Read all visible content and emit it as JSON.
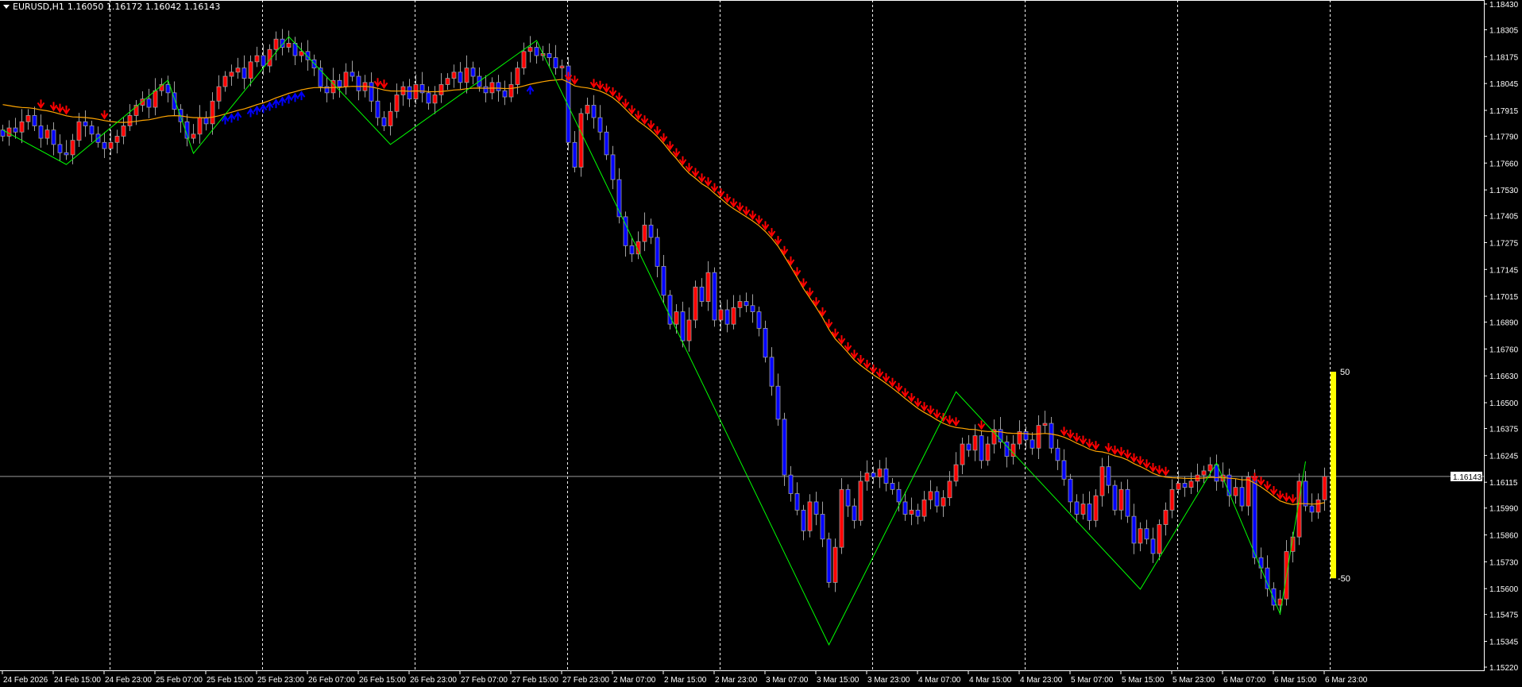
{
  "header": {
    "symbol": "EURUSD,H1",
    "ohlc": "1.16050 1.16172 1.16042 1.16143"
  },
  "colors": {
    "background": "#000000",
    "bull_candle": "#ff0000",
    "bear_candle": "#0000ff",
    "wick": "#a0a0a0",
    "moving_average": "#ffa500",
    "down_arrow": "#ff0000",
    "up_arrow": "#0000ff",
    "zigzag": "#00ff00",
    "indicator_bar": "#ffff00",
    "grid": "#ffffff"
  },
  "chart_data": {
    "type": "candlestick",
    "symbol": "EURUSD",
    "timeframe": "H1",
    "ylim": [
      1.1522,
      1.1843
    ],
    "price_ticks": [
      "1.18430",
      "1.18305",
      "1.18175",
      "1.18045",
      "1.17915",
      "1.17790",
      "1.17660",
      "1.17530",
      "1.17405",
      "1.17275",
      "1.17145",
      "1.17015",
      "1.16890",
      "1.16760",
      "1.16630",
      "1.16500",
      "1.16375",
      "1.16245",
      "1.16115",
      "1.15990",
      "1.15860",
      "1.15730",
      "1.15600",
      "1.15475",
      "1.15345",
      "1.15220"
    ],
    "time_ticks": [
      "24 Feb 2026",
      "24 Feb 15:00",
      "24 Feb 23:00",
      "25 Feb 07:00",
      "25 Feb 15:00",
      "25 Feb 23:00",
      "26 Feb 07:00",
      "26 Feb 15:00",
      "26 Feb 23:00",
      "27 Feb 07:00",
      "27 Feb 15:00",
      "27 Feb 23:00",
      "2 Mar 07:00",
      "2 Mar 15:00",
      "2 Mar 23:00",
      "3 Mar 07:00",
      "3 Mar 15:00",
      "3 Mar 23:00",
      "4 Mar 07:00",
      "4 Mar 15:00",
      "4 Mar 23:00",
      "5 Mar 07:00",
      "5 Mar 15:00",
      "5 Mar 23:00",
      "6 Mar 07:00",
      "6 Mar 15:00",
      "6 Mar 23:00"
    ],
    "day_separators_bar_index": [
      17,
      41,
      65,
      89,
      113,
      137,
      161,
      185,
      209
    ],
    "current_price": "1.16143",
    "closes": [
      1.1779,
      1.1783,
      1.1781,
      1.1786,
      1.1789,
      1.1784,
      1.1778,
      1.1782,
      1.1775,
      1.1771,
      1.177,
      1.1777,
      1.1786,
      1.1784,
      1.178,
      1.1776,
      1.1773,
      1.1776,
      1.1779,
      1.1784,
      1.1789,
      1.1794,
      1.1797,
      1.1793,
      1.1801,
      1.1804,
      1.18,
      1.1792,
      1.1786,
      1.1778,
      1.178,
      1.1788,
      1.1785,
      1.1796,
      1.1803,
      1.1808,
      1.181,
      1.1812,
      1.1807,
      1.1815,
      1.1818,
      1.1813,
      1.1821,
      1.1826,
      1.1822,
      1.1824,
      1.1818,
      1.182,
      1.1816,
      1.1812,
      1.1803,
      1.18,
      1.1806,
      1.1803,
      1.181,
      1.1808,
      1.1801,
      1.1805,
      1.1796,
      1.1788,
      1.1784,
      1.1791,
      1.1799,
      1.1803,
      1.1797,
      1.1804,
      1.18,
      1.1795,
      1.1799,
      1.1804,
      1.1807,
      1.181,
      1.1805,
      1.1812,
      1.1808,
      1.1803,
      1.18,
      1.1805,
      1.1801,
      1.1798,
      1.1804,
      1.1812,
      1.182,
      1.1822,
      1.1818,
      1.1819,
      1.1817,
      1.1812,
      1.1813,
      1.1776,
      1.1764,
      1.179,
      1.1794,
      1.1788,
      1.1781,
      1.177,
      1.1758,
      1.174,
      1.1726,
      1.1722,
      1.1728,
      1.1736,
      1.173,
      1.1716,
      1.1702,
      1.1688,
      1.1694,
      1.168,
      1.169,
      1.1706,
      1.1699,
      1.1713,
      1.169,
      1.1695,
      1.1688,
      1.1696,
      1.1699,
      1.1697,
      1.1694,
      1.1686,
      1.1672,
      1.1658,
      1.1642,
      1.1615,
      1.1606,
      1.1598,
      1.1588,
      1.1602,
      1.1596,
      1.1584,
      1.1563,
      1.158,
      1.1608,
      1.16,
      1.1593,
      1.1612,
      1.1616,
      1.1614,
      1.1618,
      1.1611,
      1.1608,
      1.1602,
      1.1596,
      1.1598,
      1.1595,
      1.1603,
      1.1607,
      1.16,
      1.1604,
      1.1612,
      1.162,
      1.163,
      1.1627,
      1.1634,
      1.1622,
      1.163,
      1.1637,
      1.1631,
      1.1624,
      1.163,
      1.1636,
      1.1632,
      1.1628,
      1.1639,
      1.164,
      1.1628,
      1.1622,
      1.1613,
      1.1602,
      1.1596,
      1.1601,
      1.1593,
      1.1605,
      1.1619,
      1.161,
      1.1598,
      1.1608,
      1.1595,
      1.1582,
      1.1589,
      1.1584,
      1.1577,
      1.1591,
      1.1598,
      1.1608,
      1.1611,
      1.1609,
      1.1612,
      1.1615,
      1.1617,
      1.162,
      1.1612,
      1.1615,
      1.1605,
      1.1609,
      1.16,
      1.1614,
      1.1575,
      1.157,
      1.156,
      1.1552,
      1.1555,
      1.1578,
      1.1585,
      1.1612,
      1.16,
      1.1597,
      1.1603,
      1.16143
    ],
    "zigzag": [
      [
        0,
        1.1782
      ],
      [
        10,
        1.17653
      ],
      [
        26,
        1.18061
      ],
      [
        30,
        1.17707
      ],
      [
        45,
        1.18272
      ],
      [
        61,
        1.1775
      ],
      [
        84,
        1.18253
      ],
      [
        130,
        1.15328
      ],
      [
        150,
        1.16553
      ],
      [
        179,
        1.15597
      ],
      [
        191,
        1.16208
      ],
      [
        201,
        1.15478
      ],
      [
        205,
        1.16216
      ]
    ],
    "indicator_bar": {
      "top_label": "50",
      "bottom_label": "-50",
      "top_price": 1.1665,
      "bottom_price": 1.1565
    }
  }
}
